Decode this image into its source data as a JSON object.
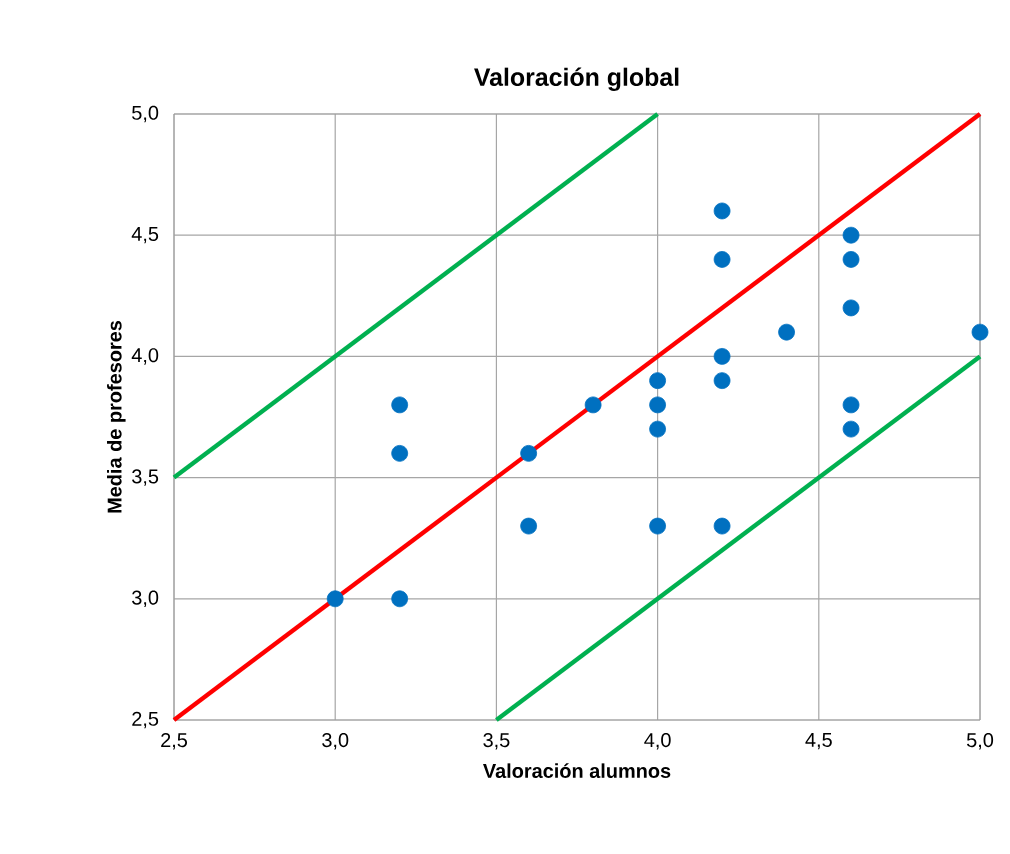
{
  "chart_data": {
    "type": "scatter",
    "title": "Valoración global",
    "xlabel": "Valoración alumnos",
    "ylabel": "Media de profesores",
    "xlim": [
      2.5,
      5.0
    ],
    "ylim": [
      2.5,
      5.0
    ],
    "xticks": [
      {
        "value": 2.5,
        "label": "2,5"
      },
      {
        "value": 3.0,
        "label": "3,0"
      },
      {
        "value": 3.5,
        "label": "3,5"
      },
      {
        "value": 4.0,
        "label": "4,0"
      },
      {
        "value": 4.5,
        "label": "4,5"
      },
      {
        "value": 5.0,
        "label": "5,0"
      }
    ],
    "yticks": [
      {
        "value": 2.5,
        "label": "2,5"
      },
      {
        "value": 3.0,
        "label": "3,0"
      },
      {
        "value": 3.5,
        "label": "3,5"
      },
      {
        "value": 4.0,
        "label": "4,0"
      },
      {
        "value": 4.5,
        "label": "4,5"
      },
      {
        "value": 5.0,
        "label": "5,0"
      }
    ],
    "grid": true,
    "marker": "circle",
    "series": [
      {
        "type": "line",
        "marker": "none",
        "color": "#00b050",
        "x": [
          2.5,
          4.0
        ],
        "values": [
          3.5,
          5.0
        ]
      },
      {
        "type": "line",
        "marker": "none",
        "color": "#00b050",
        "x": [
          3.5,
          5.0
        ],
        "values": [
          2.5,
          4.0
        ]
      },
      {
        "type": "line",
        "marker": "none",
        "color": "#ff0000",
        "x": [
          2.5,
          5.0
        ],
        "values": [
          2.5,
          5.0
        ]
      },
      {
        "color": "#0070c0",
        "x": [
          3.0,
          3.2,
          3.2,
          3.2,
          3.6,
          3.6,
          3.8,
          4.0,
          4.0,
          4.0,
          4.0,
          4.2,
          4.2,
          4.2,
          4.2,
          4.2,
          4.4,
          4.6,
          4.6,
          4.6,
          4.6,
          4.6,
          5.0
        ],
        "values": [
          3.0,
          3.8,
          3.6,
          3.0,
          3.6,
          3.3,
          3.8,
          3.9,
          3.8,
          3.7,
          3.3,
          4.6,
          4.4,
          4.0,
          3.9,
          3.3,
          4.1,
          4.5,
          4.4,
          4.2,
          3.8,
          3.7,
          4.1
        ]
      }
    ]
  }
}
